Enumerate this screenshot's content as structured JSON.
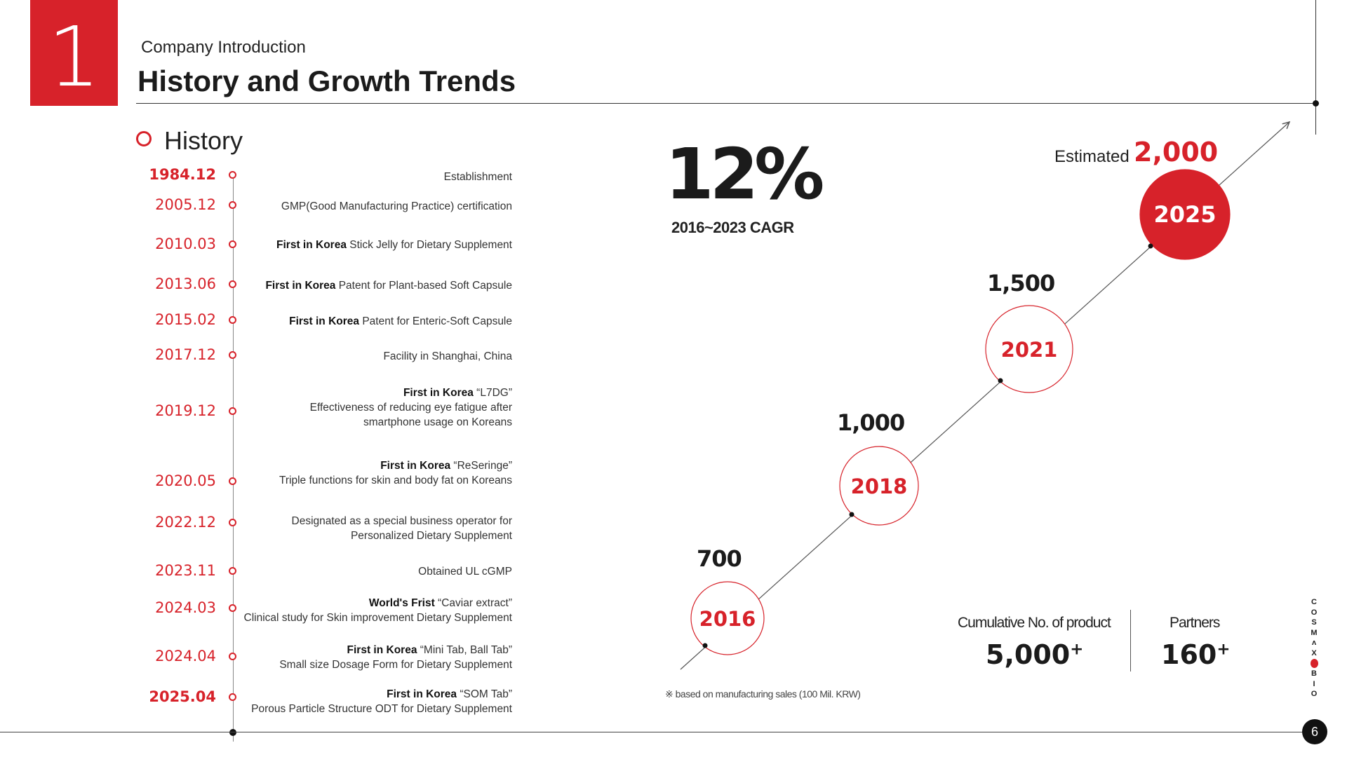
{
  "header": {
    "section_number": "1",
    "section_label": "Company Introduction",
    "title": "History and Growth Trends"
  },
  "history": {
    "heading": "History",
    "events": [
      {
        "date": "1984.12",
        "bold_date": true,
        "lines": [
          {
            "bold": "",
            "text": "Establishment"
          }
        ]
      },
      {
        "date": "2005.12",
        "bold_date": false,
        "lines": [
          {
            "bold": "",
            "text": "GMP(Good Manufacturing Practice) certification"
          }
        ]
      },
      {
        "date": "2010.03",
        "bold_date": false,
        "lines": [
          {
            "bold": "First in Korea",
            "text": " Stick Jelly for Dietary Supplement"
          }
        ]
      },
      {
        "date": "2013.06",
        "bold_date": false,
        "lines": [
          {
            "bold": "First in Korea",
            "text": " Patent for Plant-based Soft Capsule"
          }
        ]
      },
      {
        "date": "2015.02",
        "bold_date": false,
        "lines": [
          {
            "bold": "First in Korea",
            "text": " Patent for Enteric-Soft Capsule"
          }
        ]
      },
      {
        "date": "2017.12",
        "bold_date": false,
        "lines": [
          {
            "bold": "",
            "text": "Facility in Shanghai, China"
          }
        ]
      },
      {
        "date": "2019.12",
        "bold_date": false,
        "lines": [
          {
            "bold": "First in Korea",
            "text": " “L7DG”"
          },
          {
            "bold": "",
            "text": "Effectiveness of reducing eye fatigue after"
          },
          {
            "bold": "",
            "text": "smartphone usage on Koreans"
          }
        ]
      },
      {
        "date": "2020.05",
        "bold_date": false,
        "lines": [
          {
            "bold": "First in Korea",
            "text": " “ReSeringe”"
          },
          {
            "bold": "",
            "text": "Triple functions for skin and body fat on Koreans"
          }
        ]
      },
      {
        "date": "2022.12",
        "bold_date": false,
        "lines": [
          {
            "bold": "",
            "text": "Designated as a special business operator for"
          },
          {
            "bold": "",
            "text": "Personalized Dietary Supplement"
          }
        ]
      },
      {
        "date": "2023.11",
        "bold_date": false,
        "lines": [
          {
            "bold": "",
            "text": "Obtained UL cGMP"
          }
        ]
      },
      {
        "date": "2024.03",
        "bold_date": false,
        "lines": [
          {
            "bold": "World's Frist",
            "text": " “Caviar extract”"
          },
          {
            "bold": "",
            "text": "Clinical study for Skin improvement Dietary Supplement"
          }
        ]
      },
      {
        "date": "2024.04",
        "bold_date": false,
        "lines": [
          {
            "bold": "First in Korea",
            "text": " “Mini Tab, Ball Tab”"
          },
          {
            "bold": "",
            "text": "Small size Dosage Form for Dietary Supplement"
          }
        ]
      },
      {
        "date": "2025.04",
        "bold_date": true,
        "lines": [
          {
            "bold": "First in Korea",
            "text": " “SOM Tab”"
          },
          {
            "bold": "",
            "text": "Porous Particle Structure ODT for Dietary Supplement"
          }
        ]
      }
    ]
  },
  "growth": {
    "cagr_value": "12%",
    "cagr_label": "2016~2023 CAGR",
    "estimated_label": "Estimated",
    "estimated_value": "2,000",
    "footnote": "※  based on manufacturing sales (100 Mil. KRW)"
  },
  "chart_data": {
    "type": "line",
    "x": [
      "2016",
      "2018",
      "2021",
      "2025"
    ],
    "series": [
      {
        "values": [
          700,
          1000,
          1500,
          2000
        ]
      }
    ],
    "value_labels": [
      "700",
      "1,000",
      "1,500",
      "2,000"
    ],
    "highlight_point": "2025",
    "colors": {
      "accent": "#d7222a",
      "line": "#555555"
    }
  },
  "stats": {
    "products_label": "Cumulative No. of product",
    "products_value": "5,000",
    "partners_label": "Partners",
    "partners_value": "160",
    "plus_sign": "+"
  },
  "brand": {
    "letters_top": [
      "C",
      "O",
      "S",
      "M",
      "ʌ",
      "X"
    ],
    "letters_bottom": [
      "B",
      "I",
      "O"
    ]
  },
  "page_number": "6",
  "colors": {
    "accent": "#d7222a",
    "text": "#222222"
  }
}
